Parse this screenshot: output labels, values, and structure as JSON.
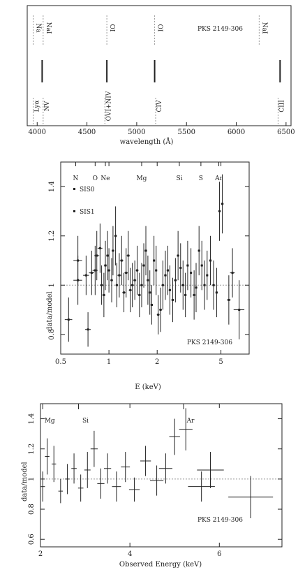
{
  "chart_data": [
    {
      "type": "line",
      "object": "PKS 2149-306",
      "xlabel": "wavelength (Å)",
      "xlim": [
        3900,
        6550
      ],
      "xticks": [
        4000,
        4500,
        5000,
        5500,
        6000,
        6500
      ],
      "emission_lines": [
        {
          "label": "Lyα",
          "x": 3960,
          "row": "bottom"
        },
        {
          "label": "NV",
          "x": 4060,
          "row": "bottom"
        },
        {
          "label": "OVI+NIV",
          "x": 4680,
          "row": "bottom"
        },
        {
          "label": "CIV",
          "x": 5190,
          "row": "bottom"
        },
        {
          "label": "CIII",
          "x": 6420,
          "row": "bottom"
        },
        {
          "label": "Na",
          "x": 3960,
          "row": "top"
        },
        {
          "label": "NaI",
          "x": 4060,
          "row": "top"
        },
        {
          "label": "OI",
          "x": 4700,
          "row": "top"
        },
        {
          "label": "OI",
          "x": 5180,
          "row": "top"
        },
        {
          "label": "NaI",
          "x": 6230,
          "row": "top"
        }
      ],
      "features": [
        4050,
        4700,
        5180,
        6440
      ]
    },
    {
      "type": "scatter",
      "object": "PKS 2149-306",
      "xlabel": "E (keV)",
      "ylabel": "data/model",
      "xscale": "log",
      "xlim": [
        0.5,
        7.5
      ],
      "ylim": [
        0.72,
        1.5
      ],
      "xticks": [
        0.5,
        1,
        2,
        5
      ],
      "yticks": [
        0.8,
        1,
        1.2,
        1.4
      ],
      "legend": [
        "SIS0",
        "SIS1"
      ],
      "line_labels": [
        {
          "label": "N",
          "x": 0.62
        },
        {
          "label": "O",
          "x": 0.82
        },
        {
          "label": "Ne",
          "x": 0.95
        },
        {
          "label": "Mg",
          "x": 1.6
        },
        {
          "label": "Si",
          "x": 2.75
        },
        {
          "label": "S",
          "x": 3.75
        },
        {
          "label": "Ar",
          "x": 4.85
        }
      ],
      "series": [
        {
          "name": "SIS0",
          "points": [
            [
              0.56,
              0.86,
              0.03,
              0.09
            ],
            [
              0.64,
              1.1,
              0.04,
              0.1
            ],
            [
              0.72,
              1.04,
              0.03,
              0.08
            ],
            [
              0.78,
              1.05,
              0.03,
              0.09
            ],
            [
              0.84,
              1.12,
              0.03,
              0.1
            ],
            [
              0.9,
              1.0,
              0.02,
              0.08
            ],
            [
              0.95,
              1.08,
              0.02,
              0.1
            ],
            [
              1.0,
              1.06,
              0.02,
              0.09
            ],
            [
              1.06,
              1.14,
              0.02,
              0.1
            ],
            [
              1.12,
              1.0,
              0.02,
              0.09
            ],
            [
              1.2,
              1.1,
              0.03,
              0.1
            ],
            [
              1.28,
              1.05,
              0.03,
              0.1
            ],
            [
              1.36,
              0.98,
              0.03,
              0.09
            ],
            [
              1.45,
              1.02,
              0.03,
              0.08
            ],
            [
              1.55,
              0.96,
              0.03,
              0.09
            ],
            [
              1.65,
              1.08,
              0.03,
              0.09
            ],
            [
              1.75,
              1.02,
              0.03,
              0.1
            ],
            [
              1.85,
              0.92,
              0.03,
              0.08
            ],
            [
              1.97,
              1.06,
              0.03,
              0.1
            ],
            [
              2.1,
              0.9,
              0.04,
              0.09
            ],
            [
              2.25,
              1.04,
              0.04,
              0.1
            ],
            [
              2.4,
              0.98,
              0.04,
              0.1
            ],
            [
              2.6,
              1.02,
              0.05,
              0.09
            ],
            [
              2.8,
              1.07,
              0.05,
              0.1
            ],
            [
              3.0,
              0.96,
              0.05,
              0.09
            ],
            [
              3.25,
              1.05,
              0.05,
              0.1
            ],
            [
              3.5,
              0.99,
              0.06,
              0.1
            ],
            [
              3.8,
              1.08,
              0.06,
              0.1
            ],
            [
              4.1,
              1.04,
              0.06,
              0.1
            ],
            [
              4.5,
              1.0,
              0.08,
              0.1
            ],
            [
              4.9,
              1.3,
              0.08,
              0.12
            ],
            [
              5.6,
              0.94,
              0.15,
              0.1
            ],
            [
              6.5,
              0.9,
              0.5,
              0.12
            ]
          ]
        },
        {
          "name": "SIS1",
          "points": [
            [
              0.64,
              1.02,
              0.04,
              0.1
            ],
            [
              0.74,
              0.82,
              0.03,
              0.07
            ],
            [
              0.82,
              1.06,
              0.03,
              0.1
            ],
            [
              0.88,
              1.15,
              0.03,
              0.1
            ],
            [
              0.93,
              0.96,
              0.02,
              0.09
            ],
            [
              0.98,
              1.12,
              0.02,
              0.1
            ],
            [
              1.04,
              1.02,
              0.02,
              0.09
            ],
            [
              1.1,
              1.2,
              0.02,
              0.12
            ],
            [
              1.16,
              1.04,
              0.03,
              0.09
            ],
            [
              1.24,
              0.97,
              0.03,
              0.08
            ],
            [
              1.32,
              1.12,
              0.03,
              0.1
            ],
            [
              1.4,
              1.0,
              0.03,
              0.09
            ],
            [
              1.5,
              1.06,
              0.03,
              0.1
            ],
            [
              1.6,
              1.0,
              0.03,
              0.09
            ],
            [
              1.7,
              1.14,
              0.03,
              0.1
            ],
            [
              1.8,
              0.97,
              0.03,
              0.09
            ],
            [
              1.91,
              1.1,
              0.03,
              0.1
            ],
            [
              2.03,
              0.88,
              0.04,
              0.08
            ],
            [
              2.17,
              1.0,
              0.04,
              0.1
            ],
            [
              2.33,
              1.06,
              0.04,
              0.1
            ],
            [
              2.5,
              0.94,
              0.05,
              0.09
            ],
            [
              2.7,
              1.12,
              0.05,
              0.1
            ],
            [
              2.9,
              1.0,
              0.05,
              0.1
            ],
            [
              3.1,
              1.08,
              0.05,
              0.1
            ],
            [
              3.4,
              0.96,
              0.06,
              0.1
            ],
            [
              3.65,
              1.14,
              0.06,
              0.1
            ],
            [
              3.95,
              1.0,
              0.06,
              0.1
            ],
            [
              4.3,
              1.1,
              0.07,
              0.1
            ],
            [
              4.7,
              0.97,
              0.08,
              0.1
            ],
            [
              5.1,
              1.33,
              0.1,
              0.12
            ],
            [
              5.9,
              1.05,
              0.2,
              0.1
            ]
          ]
        }
      ]
    },
    {
      "type": "scatter",
      "object": "PKS 2149-306",
      "xlabel": "Observed Energy (keV)",
      "ylabel": "data/model",
      "xlim": [
        2,
        7.4
      ],
      "ylim": [
        0.55,
        1.5
      ],
      "xticks": [
        2,
        4,
        6
      ],
      "yticks": [
        0.6,
        0.8,
        1,
        1.2,
        1.4
      ],
      "line_labels": [
        {
          "label": "Mg",
          "x": 2.05
        },
        {
          "label": "Si",
          "x": 2.85
        },
        {
          "label": "Ar",
          "x": 5.2
        }
      ],
      "points": [
        [
          2.05,
          0.95,
          0.05,
          0.1
        ],
        [
          2.15,
          1.15,
          0.05,
          0.12
        ],
        [
          2.3,
          1.1,
          0.05,
          0.12
        ],
        [
          2.45,
          0.92,
          0.05,
          0.08
        ],
        [
          2.6,
          1.0,
          0.05,
          0.1
        ],
        [
          2.75,
          1.07,
          0.06,
          0.1
        ],
        [
          2.9,
          0.94,
          0.06,
          0.09
        ],
        [
          3.05,
          1.06,
          0.07,
          0.12
        ],
        [
          3.2,
          1.2,
          0.08,
          0.12
        ],
        [
          3.35,
          0.97,
          0.08,
          0.1
        ],
        [
          3.5,
          1.07,
          0.08,
          0.1
        ],
        [
          3.7,
          0.95,
          0.1,
          0.1
        ],
        [
          3.9,
          1.08,
          0.1,
          0.1
        ],
        [
          4.1,
          0.93,
          0.12,
          0.08
        ],
        [
          4.35,
          1.12,
          0.12,
          0.1
        ],
        [
          4.6,
          0.99,
          0.15,
          0.1
        ],
        [
          4.8,
          1.07,
          0.15,
          0.1
        ],
        [
          5.0,
          1.28,
          0.12,
          0.12
        ],
        [
          5.25,
          1.33,
          0.15,
          0.14
        ],
        [
          5.6,
          0.95,
          0.3,
          0.1
        ],
        [
          5.8,
          1.06,
          0.3,
          0.12
        ],
        [
          6.7,
          0.88,
          0.5,
          0.14
        ]
      ]
    }
  ]
}
